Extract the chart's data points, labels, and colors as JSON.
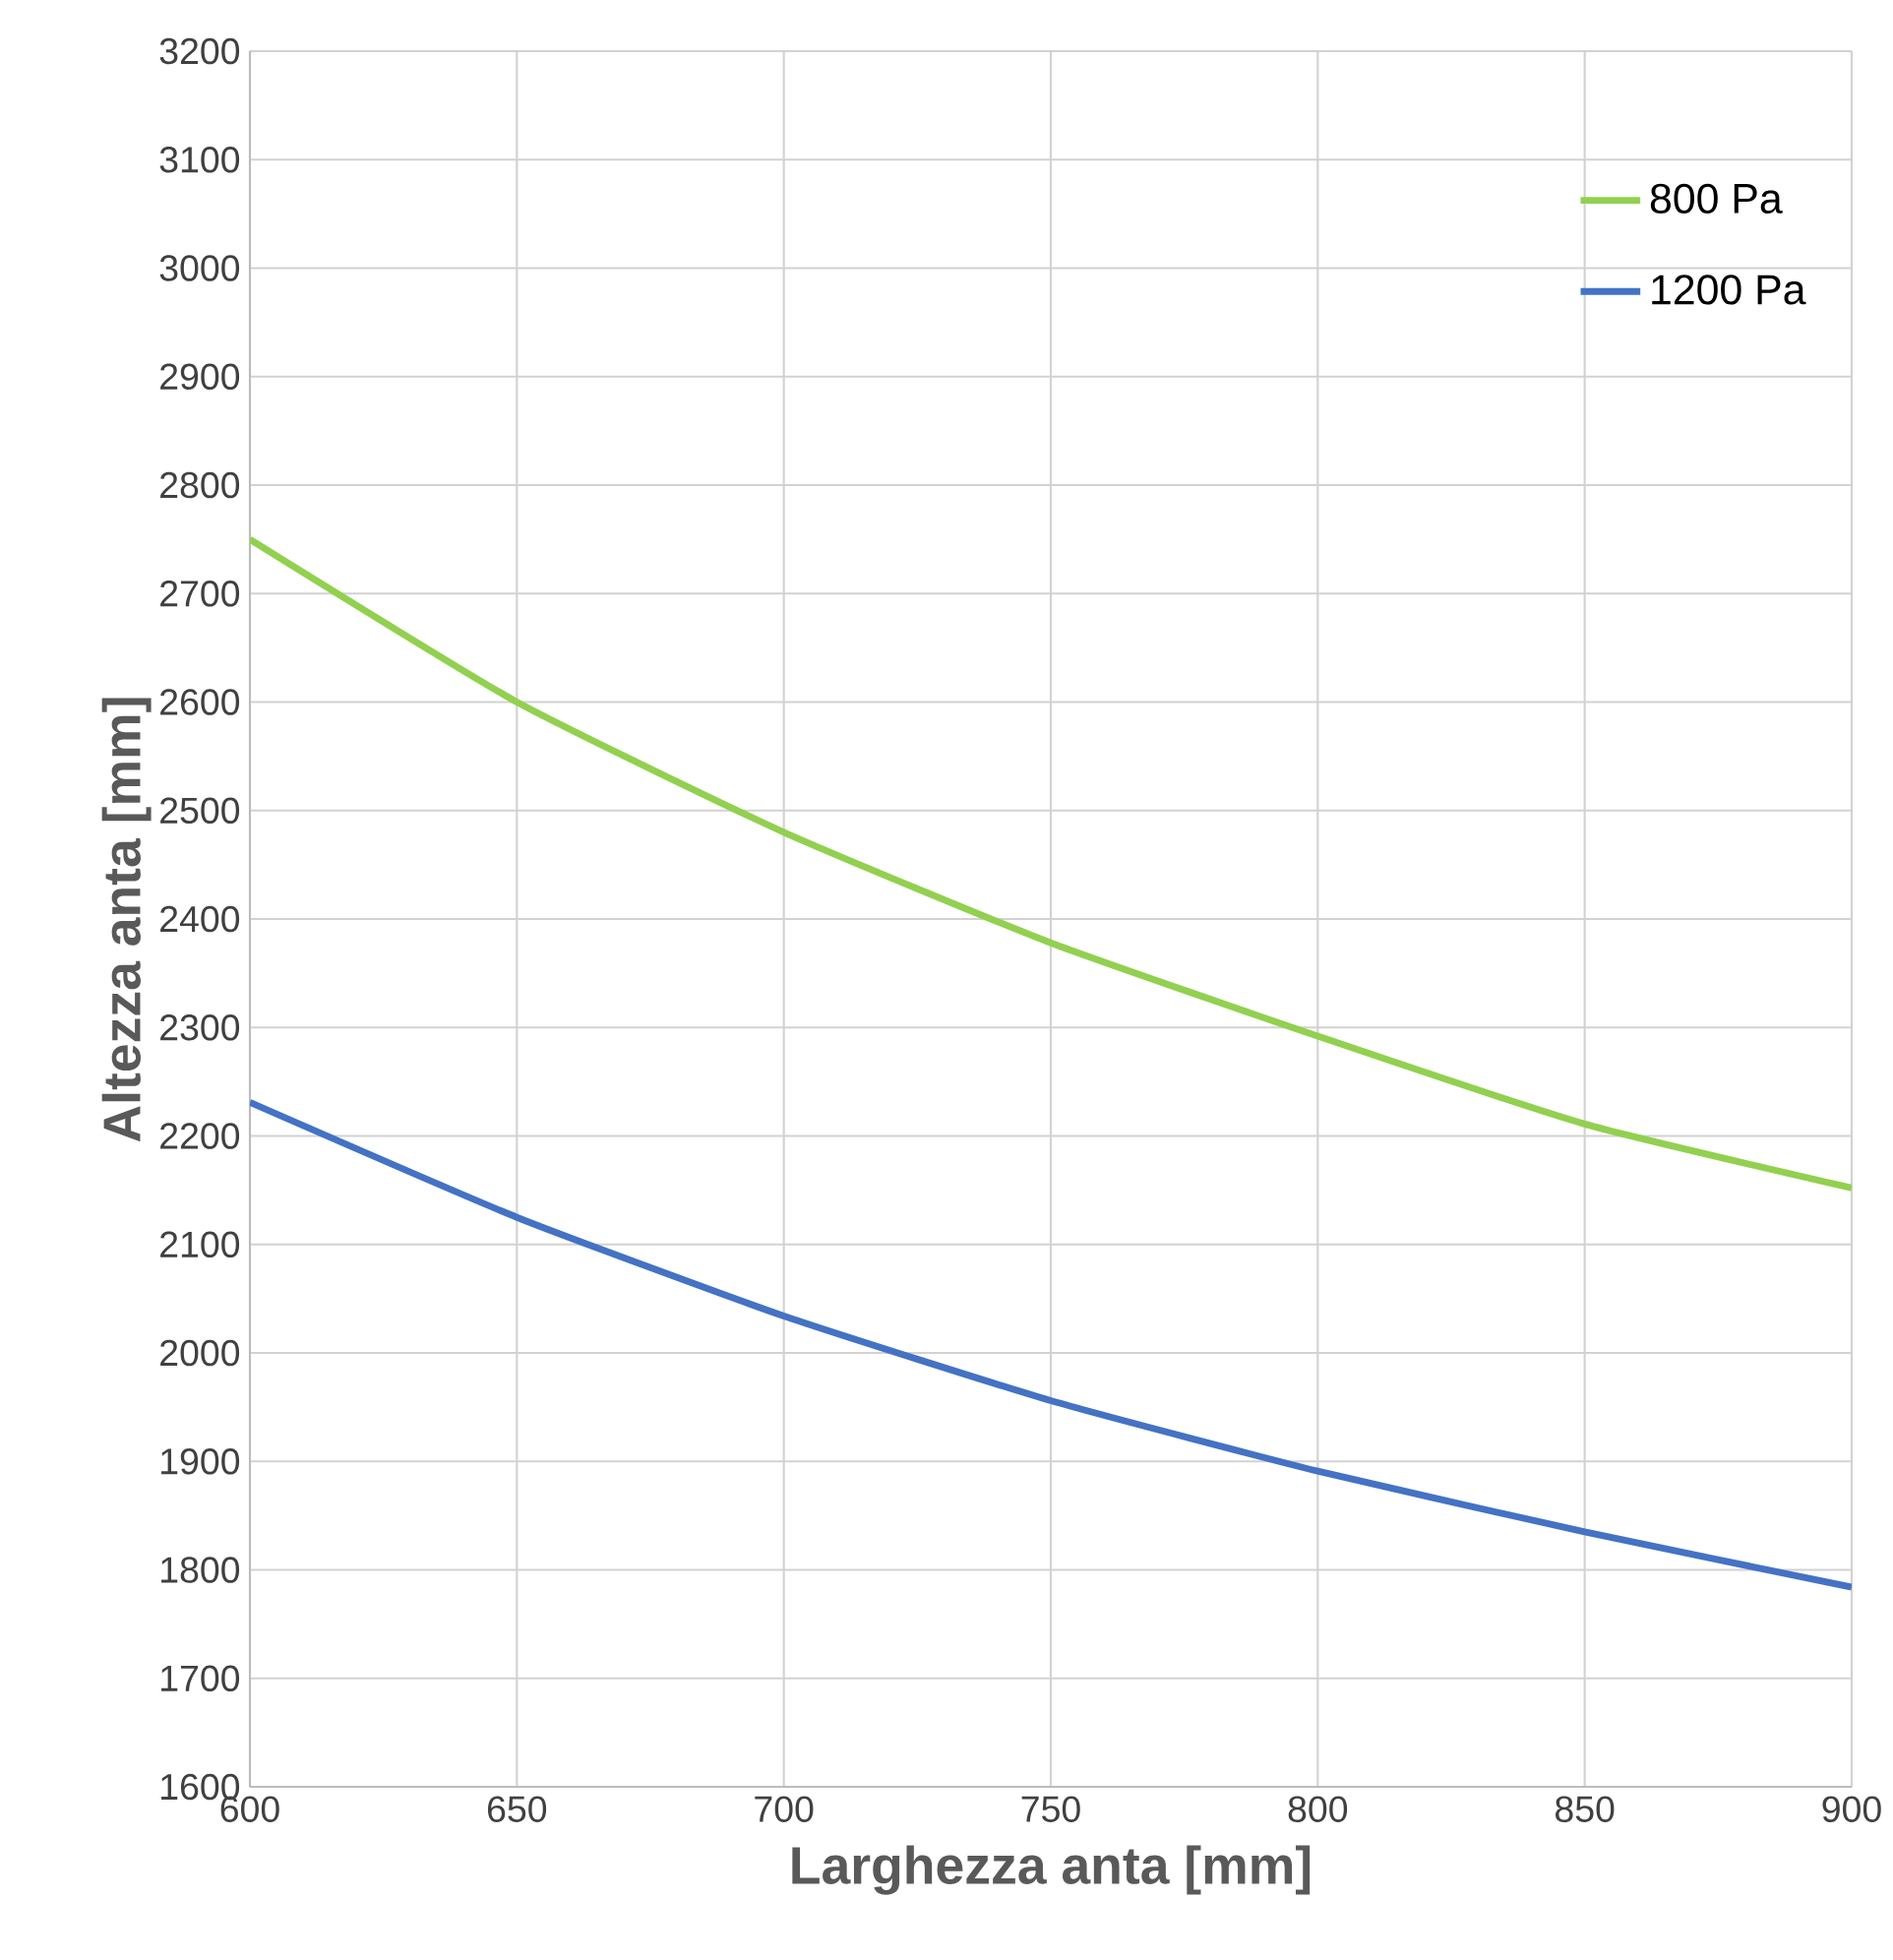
{
  "chart_data": {
    "type": "line",
    "xlabel": "Larghezza anta [mm]",
    "ylabel": "Altezza anta [mm]",
    "x": [
      600,
      650,
      700,
      750,
      800,
      850,
      900
    ],
    "series": [
      {
        "name": "800 Pa",
        "color": "#92d050",
        "values": [
          2750,
          2600,
          2480,
          2378,
          2292,
          2211,
          2152
        ]
      },
      {
        "name": "1200 Pa",
        "color": "#4472c4",
        "values": [
          2231,
          2125,
          2034,
          1956,
          1891,
          1835,
          1784
        ]
      }
    ],
    "xlim": [
      600,
      900
    ],
    "xticks": [
      600,
      650,
      700,
      750,
      800,
      850,
      900
    ],
    "ylim": [
      1600,
      3200
    ],
    "yticks": [
      1600,
      1700,
      1800,
      1900,
      2000,
      2100,
      2200,
      2300,
      2400,
      2500,
      2600,
      2700,
      2800,
      2900,
      3000,
      3100,
      3200
    ],
    "grid": true,
    "legend": "top right",
    "marker": "none",
    "line_style": "solid"
  }
}
